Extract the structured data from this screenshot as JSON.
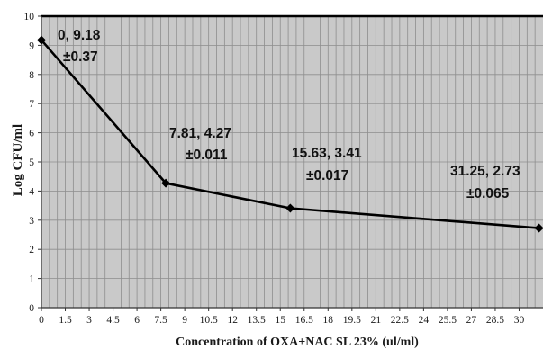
{
  "chart_data": {
    "type": "line",
    "title": "",
    "xlabel": "Concentration of OXA+NAC SL 23% (ul/ml)",
    "ylabel": "Log CFU/ml",
    "xlim": [
      0,
      31.5
    ],
    "ylim": [
      0,
      10
    ],
    "y_ticks": [
      "0",
      "1",
      "2",
      "3",
      "4",
      "5",
      "6",
      "7",
      "8",
      "9",
      "10"
    ],
    "x_ticks": [
      "0",
      "1.5",
      "3",
      "4.5",
      "6",
      "7.5",
      "9",
      "10.5",
      "12",
      "13.5",
      "15",
      "16.5",
      "18",
      "19.5",
      "21",
      "22.5",
      "24",
      "25.5",
      "27",
      "28.5",
      "30"
    ],
    "x_tick_values": [
      0,
      1.5,
      3,
      4.5,
      6,
      7.5,
      9,
      10.5,
      12,
      13.5,
      15,
      16.5,
      18,
      19.5,
      21,
      22.5,
      24,
      25.5,
      27,
      28.5,
      30
    ],
    "grid": true,
    "series": [
      {
        "x": [
          0,
          7.81,
          15.63,
          31.25
        ],
        "y": [
          9.18,
          4.27,
          3.41,
          2.73
        ],
        "marker": "diamond",
        "color": "#000000"
      }
    ],
    "annotations": [
      {
        "line1": "0, 9.18",
        "line2": "±0.37"
      },
      {
        "line1": "7.81, 4.27",
        "line2": "±0.011"
      },
      {
        "line1": "15.63, 3.41",
        "line2": "±0.017"
      },
      {
        "line1": "31.25, 2.73",
        "line2": "±0.065"
      }
    ],
    "colors": {
      "plot_background": "#c9c9c9",
      "grid_line": "#8e8e8e",
      "line": "#000000"
    }
  }
}
